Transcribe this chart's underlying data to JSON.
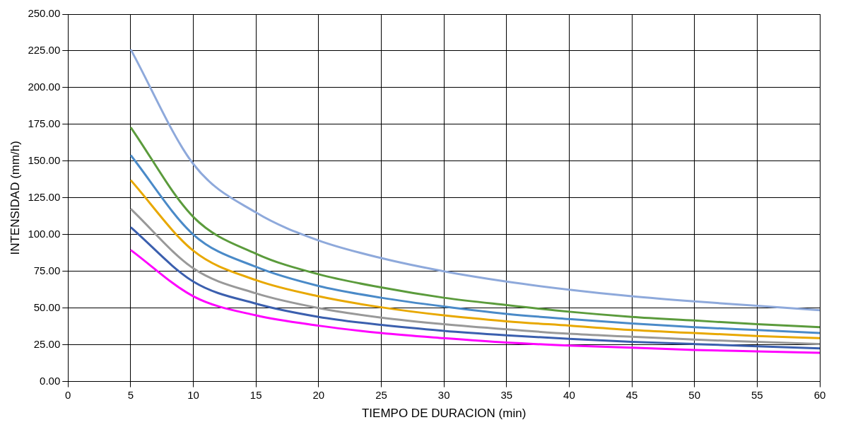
{
  "chart_data": {
    "type": "line",
    "xlabel": "TIEMPO DE DURACION (min)",
    "ylabel": "INTENSIDAD (mm/h)",
    "x": [
      5,
      10,
      15,
      20,
      25,
      30,
      35,
      40,
      45,
      50,
      55,
      60
    ],
    "series": [
      {
        "color": "#8ea9db",
        "values": [
          226,
          148,
          115,
          96,
          84,
          75,
          68,
          62.5,
          58,
          54.5,
          51.5,
          48.5
        ]
      },
      {
        "color": "#5b9b3c",
        "values": [
          173,
          112,
          87,
          73,
          64,
          57,
          52,
          47.5,
          44,
          41.5,
          39,
          37
        ]
      },
      {
        "color": "#4a8ac8",
        "values": [
          154,
          100,
          78,
          65,
          57,
          51,
          46,
          42.5,
          39.5,
          37,
          35,
          33
        ]
      },
      {
        "color": "#e8a800",
        "values": [
          137,
          89,
          69,
          58,
          50.5,
          45,
          41,
          38,
          35,
          33,
          31,
          29.5
        ]
      },
      {
        "color": "#999999",
        "values": [
          117.5,
          77,
          60,
          50,
          43.5,
          39,
          35.5,
          32.5,
          30.5,
          28.5,
          27,
          25.5
        ]
      },
      {
        "color": "#3b5fae",
        "values": [
          105,
          68,
          53,
          44,
          38.5,
          34.5,
          31.5,
          29,
          27,
          25.5,
          24,
          22.5
        ]
      },
      {
        "color": "#ff00ff",
        "values": [
          89.5,
          58,
          45,
          38,
          33,
          29.5,
          26.5,
          24.5,
          23,
          21.5,
          20.5,
          19.5
        ]
      }
    ],
    "xlim": [
      0,
      60
    ],
    "xticks": [
      0,
      5,
      10,
      15,
      20,
      25,
      30,
      35,
      40,
      45,
      50,
      55,
      60
    ],
    "ylim": [
      0,
      250
    ],
    "yticks": [
      {
        "value": 0,
        "label": "0.00"
      },
      {
        "value": 25,
        "label": "25.00"
      },
      {
        "value": 50,
        "label": "50.00"
      },
      {
        "value": 75,
        "label": "75.00"
      },
      {
        "value": 100,
        "label": "100.00"
      },
      {
        "value": 125,
        "label": "125.00"
      },
      {
        "value": 150,
        "label": "150.00"
      },
      {
        "value": 175,
        "label": "175.00"
      },
      {
        "value": 200,
        "label": "200.00"
      },
      {
        "value": 225,
        "label": "225.00"
      },
      {
        "value": 250,
        "label": "250.00"
      }
    ],
    "grid": true,
    "legend": false,
    "marker": "none",
    "line_style": "solid"
  }
}
